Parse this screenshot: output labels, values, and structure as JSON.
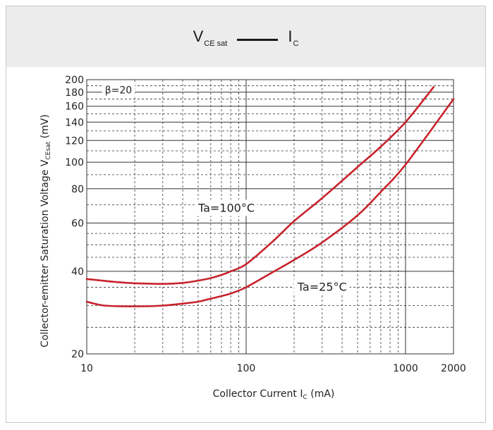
{
  "header": {
    "title_left_main": "V",
    "title_left_sub": "CE sat",
    "title_right_main": "I",
    "title_right_sub": "C"
  },
  "chart_data": {
    "type": "line",
    "x_scale": "log",
    "y_scale": "log",
    "xlim": [
      10,
      2000
    ],
    "ylim": [
      20,
      200
    ],
    "xlabel_prefix": "Collector Current  I",
    "xlabel_sub": "C",
    "xlabel_suffix": " (mA)",
    "ylabel_prefix": "Collector-emitter Saturation Voltage  V",
    "ylabel_sub": "CEsat",
    "ylabel_suffix": " (mV)",
    "x_ticks": [
      10,
      100,
      1000,
      2000
    ],
    "x_tick_labels": [
      "10",
      "100",
      "1000",
      "2000"
    ],
    "y_ticks": [
      20,
      40,
      60,
      80,
      100,
      120,
      140,
      160,
      180,
      200
    ],
    "y_tick_labels": [
      "20",
      "40",
      "60",
      "80",
      "100",
      "120",
      "140",
      "160",
      "180",
      "200"
    ],
    "grid": true,
    "line_color": "#c8232c",
    "annotations": [
      {
        "text": "β=20",
        "x": 13,
        "y": 178
      },
      {
        "text": "Ta=100°C",
        "x": 50,
        "y": 66
      },
      {
        "text": "Ta=25°C",
        "x": 210,
        "y": 34
      }
    ],
    "series": [
      {
        "name": "Ta=100°C",
        "x": [
          10,
          15,
          20,
          30,
          40,
          50,
          60,
          70,
          80,
          100,
          150,
          200,
          300,
          500,
          700,
          1000,
          1500
        ],
        "y": [
          37.5,
          36.6,
          36.2,
          36.0,
          36.3,
          37.0,
          37.8,
          38.8,
          40.0,
          42.5,
          52,
          61,
          74,
          96,
          114,
          140,
          188
        ]
      },
      {
        "name": "Ta=25°C",
        "x": [
          10,
          13,
          20,
          30,
          40,
          50,
          60,
          70,
          80,
          100,
          150,
          200,
          300,
          500,
          700,
          1000,
          2000
        ],
        "y": [
          31.0,
          30.0,
          29.8,
          30.0,
          30.5,
          31.0,
          31.8,
          32.5,
          33.2,
          35.0,
          40,
          44,
          51,
          64,
          78,
          98,
          170
        ]
      }
    ]
  }
}
